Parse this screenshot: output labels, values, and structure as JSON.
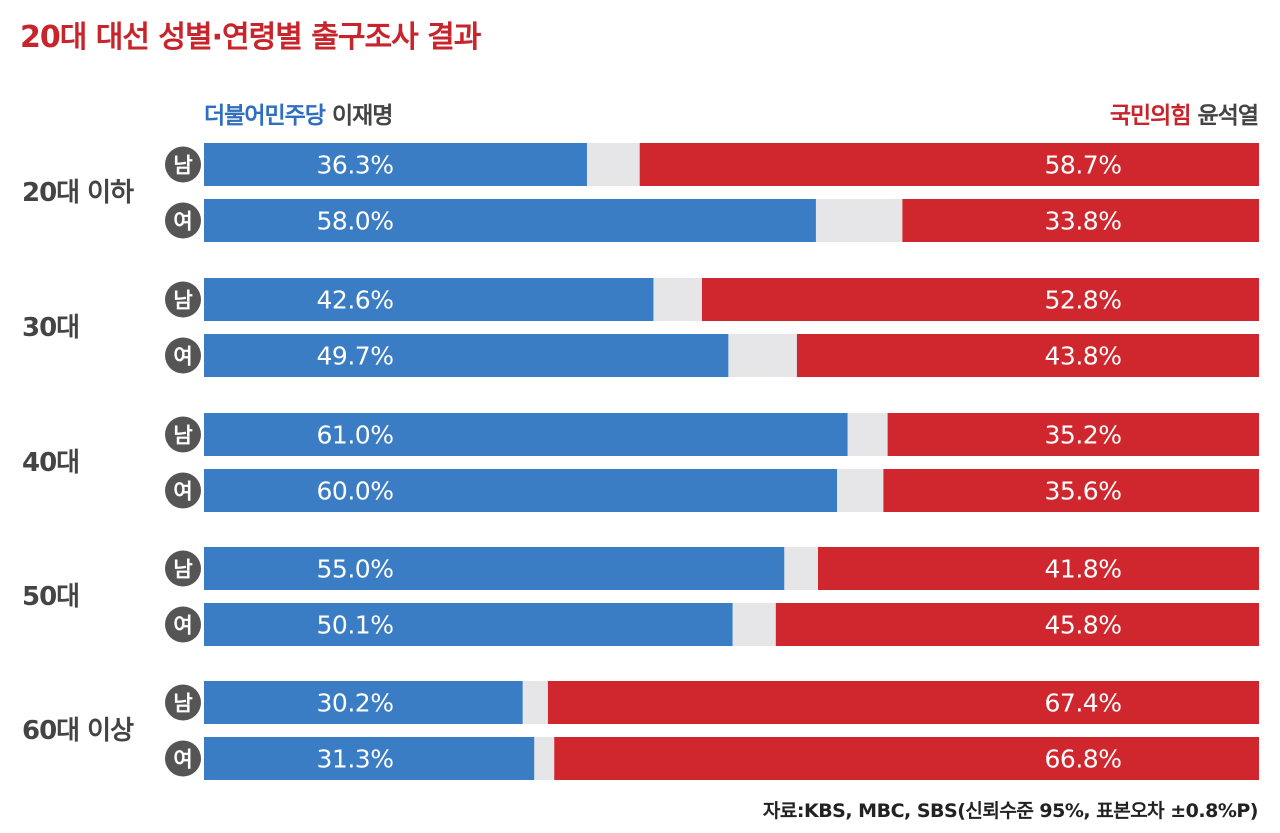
{
  "title": "20대 대선 성별·연령별 출구조사 결과",
  "legend": {
    "left_party": "더불어민주당",
    "left_candidate": "이재명",
    "right_party": "국민의힘",
    "right_candidate": "윤석열"
  },
  "source": "자료:KBS, MBC, SBS(신뢰수준 95%, 표본오차 ±0.8%P)",
  "colors": {
    "dem": "#3a7dc4",
    "ppp": "#d0262d",
    "gap": "#e6e6e8",
    "badge": "#555555"
  },
  "chart_data": {
    "type": "bar",
    "stacked": true,
    "orientation": "horizontal",
    "title": "20대 대선 성별·연령별 출구조사 결과",
    "xlim": [
      0,
      100
    ],
    "series": [
      {
        "name": "더불어민주당 이재명",
        "color": "#3a7dc4"
      },
      {
        "name": "국민의힘 윤석열",
        "color": "#d0262d"
      }
    ],
    "groups": [
      {
        "label": "20대 이하",
        "rows": [
          {
            "gender": "남",
            "dem": 36.3,
            "ppp": 58.7,
            "dem_label": "36.3%",
            "ppp_label": "58.7%"
          },
          {
            "gender": "여",
            "dem": 58.0,
            "ppp": 33.8,
            "dem_label": "58.0%",
            "ppp_label": "33.8%"
          }
        ]
      },
      {
        "label": "30대",
        "rows": [
          {
            "gender": "남",
            "dem": 42.6,
            "ppp": 52.8,
            "dem_label": "42.6%",
            "ppp_label": "52.8%"
          },
          {
            "gender": "여",
            "dem": 49.7,
            "ppp": 43.8,
            "dem_label": "49.7%",
            "ppp_label": "43.8%"
          }
        ]
      },
      {
        "label": "40대",
        "rows": [
          {
            "gender": "남",
            "dem": 61.0,
            "ppp": 35.2,
            "dem_label": "61.0%",
            "ppp_label": "35.2%"
          },
          {
            "gender": "여",
            "dem": 60.0,
            "ppp": 35.6,
            "dem_label": "60.0%",
            "ppp_label": "35.6%"
          }
        ]
      },
      {
        "label": "50대",
        "rows": [
          {
            "gender": "남",
            "dem": 55.0,
            "ppp": 41.8,
            "dem_label": "55.0%",
            "ppp_label": "41.8%"
          },
          {
            "gender": "여",
            "dem": 50.1,
            "ppp": 45.8,
            "dem_label": "50.1%",
            "ppp_label": "45.8%"
          }
        ]
      },
      {
        "label": "60대 이상",
        "rows": [
          {
            "gender": "남",
            "dem": 30.2,
            "ppp": 67.4,
            "dem_label": "30.2%",
            "ppp_label": "67.4%"
          },
          {
            "gender": "여",
            "dem": 31.3,
            "ppp": 66.8,
            "dem_label": "31.3%",
            "ppp_label": "66.8%"
          }
        ]
      }
    ]
  }
}
